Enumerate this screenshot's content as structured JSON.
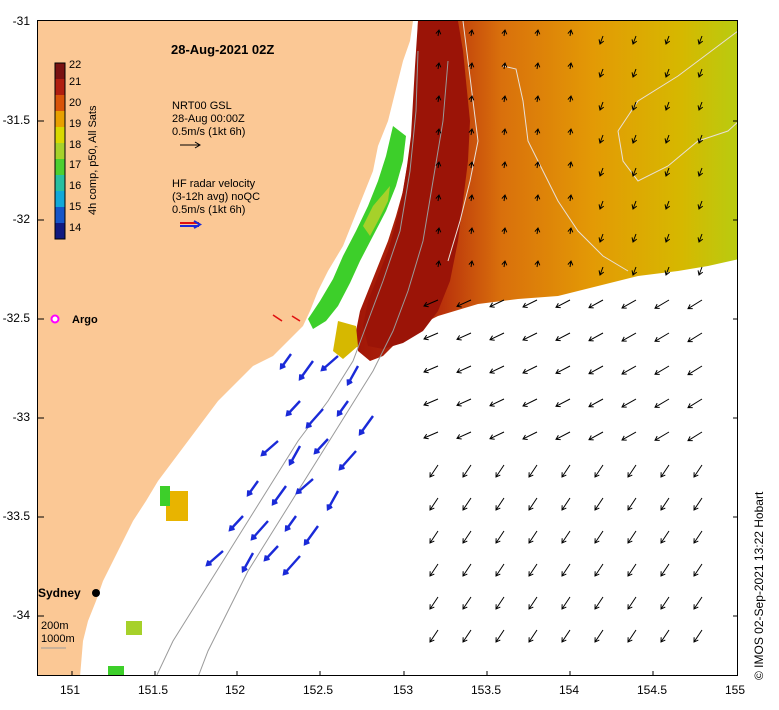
{
  "title": "28-Aug-2021 02Z",
  "colorbar": {
    "label": "4h comp, p50, All Sats",
    "ticks": [
      "22",
      "21",
      "20",
      "19",
      "18",
      "17",
      "16",
      "15",
      "14"
    ],
    "colors": [
      "#7a1212",
      "#b01e10",
      "#d8540a",
      "#e8a000",
      "#d8d800",
      "#a6d12a",
      "#4ccf30",
      "#27bfa0",
      "#12a8d8",
      "#1555c8",
      "#101a80"
    ]
  },
  "legend_gsl": {
    "line1": "NRT00 GSL",
    "line2": "28-Aug 00:00Z",
    "line3": "0.5m/s (1kt 6h)"
  },
  "legend_hf": {
    "line1": "HF radar velocity",
    "line2": "(3-12h avg) noQC",
    "line3": "0.5m/s (1kt 6h)"
  },
  "argo_label": "Argo",
  "city_label": "Sydney",
  "bathy": {
    "line1": "200m",
    "line2": "1000m"
  },
  "y_ticks": [
    "-31",
    "-31.5",
    "-32",
    "-32.5",
    "-33",
    "-33.5",
    "-34"
  ],
  "x_ticks": [
    "151",
    "151.5",
    "152",
    "152.5",
    "153",
    "153.5",
    "154",
    "154.5",
    "155"
  ],
  "credit": "© IMOS 02-Sep-2021 13:22 Hobart",
  "colors": {
    "land": "#fbc895",
    "hot": "#a51a0a",
    "warm_orange": "#d9700c",
    "warm_yellow": "#e8b400",
    "cool_green": "#3dcf2a",
    "argo": "#ff00ff",
    "hf_arrow": "#1a2ad8"
  }
}
